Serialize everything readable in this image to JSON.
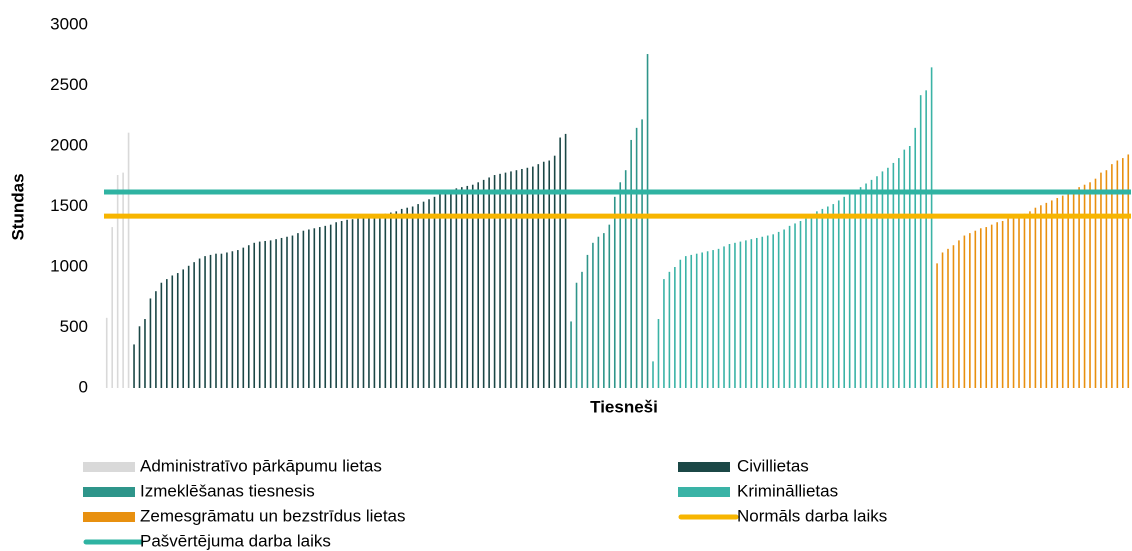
{
  "chart_data": {
    "type": "bar",
    "y_label": "Stundas",
    "x_label": "Tiesneši",
    "ylim": [
      0,
      3000
    ],
    "yticks": [
      0,
      500,
      1000,
      1500,
      2000,
      2500,
      3000
    ],
    "grid": false,
    "series": [
      {
        "name": "Administratīvo pārkāpumu lietas",
        "color": "#d9d9d9",
        "values": [
          580,
          1330,
          1760,
          1780,
          2110
        ]
      },
      {
        "name": "Civillietas",
        "color": "#1b4746",
        "values": [
          360,
          510,
          570,
          740,
          800,
          870,
          900,
          930,
          950,
          980,
          1010,
          1040,
          1070,
          1090,
          1100,
          1110,
          1110,
          1120,
          1130,
          1140,
          1160,
          1180,
          1200,
          1210,
          1215,
          1220,
          1230,
          1240,
          1250,
          1260,
          1280,
          1300,
          1310,
          1320,
          1330,
          1340,
          1350,
          1370,
          1380,
          1390,
          1395,
          1400,
          1405,
          1410,
          1420,
          1430,
          1440,
          1450,
          1460,
          1480,
          1490,
          1500,
          1520,
          1540,
          1560,
          1580,
          1600,
          1620,
          1640,
          1650,
          1660,
          1670,
          1680,
          1700,
          1720,
          1740,
          1760,
          1770,
          1780,
          1790,
          1800,
          1810,
          1820,
          1830,
          1850,
          1870,
          1880,
          1920,
          2070,
          2100
        ]
      },
      {
        "name": "Izmeklēšanas tiesnesis",
        "color": "#2e958a",
        "values": [
          550,
          870,
          960,
          1100,
          1200,
          1250,
          1280,
          1350,
          1580,
          1700,
          1800,
          2050,
          2150,
          2220,
          2760
        ]
      },
      {
        "name": "Krimināllietas",
        "color": "#3ab3a6",
        "values": [
          220,
          570,
          900,
          960,
          1000,
          1060,
          1090,
          1100,
          1110,
          1120,
          1130,
          1140,
          1150,
          1170,
          1190,
          1200,
          1210,
          1220,
          1230,
          1240,
          1250,
          1260,
          1270,
          1290,
          1310,
          1340,
          1360,
          1380,
          1400,
          1430,
          1460,
          1480,
          1500,
          1520,
          1550,
          1580,
          1600,
          1630,
          1660,
          1690,
          1720,
          1750,
          1790,
          1820,
          1860,
          1900,
          1970,
          2000,
          2150,
          2420,
          2460,
          2650
        ]
      },
      {
        "name": "Zemesgrāmatu un bezstrīdus lietas",
        "color": "#e8900f",
        "values": [
          1030,
          1120,
          1150,
          1180,
          1220,
          1260,
          1280,
          1300,
          1320,
          1330,
          1350,
          1370,
          1380,
          1400,
          1410,
          1420,
          1440,
          1460,
          1490,
          1510,
          1530,
          1550,
          1570,
          1590,
          1610,
          1640,
          1660,
          1680,
          1700,
          1730,
          1780,
          1800,
          1850,
          1880,
          1900,
          1930
        ]
      }
    ],
    "reference_lines": [
      {
        "name": "Normāls darba laiks",
        "color": "#f7b500",
        "value": 1420
      },
      {
        "name": "Pašvērtējuma darba laiks",
        "color": "#2fb3a2",
        "value": 1620
      }
    ]
  }
}
